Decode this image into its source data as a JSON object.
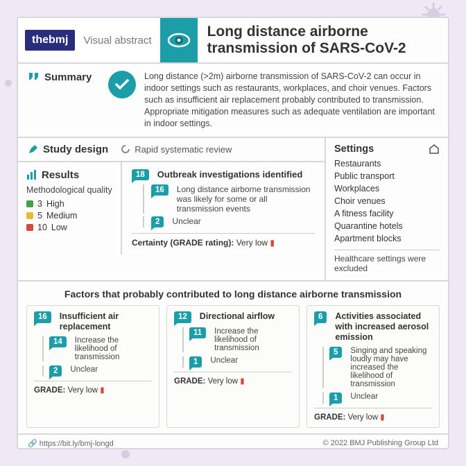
{
  "colors": {
    "accent": "#1c9ea8",
    "navy": "#2a2d7c",
    "border": "#d8d8d8",
    "bg_outer": "#f0e8f5",
    "high": "#3da24a",
    "medium": "#e8b83a",
    "low": "#d24a3a"
  },
  "header": {
    "logo_text": "thebmj",
    "visual_abstract": "Visual abstract",
    "title": "Long distance airborne transmission of SARS-CoV-2"
  },
  "summary": {
    "label": "Summary",
    "text": "Long distance (>2m) airborne transmission of SARS-CoV-2 can occur in indoor settings such as restaurants, workplaces, and choir venues. Factors such as insufficient air replacement probably contributed to transmission. Appropriate mitigation measures such as adequate ventilation are important in indoor settings."
  },
  "study_design": {
    "label": "Study design",
    "type": "Rapid systematic review"
  },
  "results": {
    "label": "Results",
    "quality_title": "Methodological quality",
    "quality": [
      {
        "n": "3",
        "label": "High"
      },
      {
        "n": "5",
        "label": "Medium"
      },
      {
        "n": "10",
        "label": "Low"
      }
    ],
    "quality_colors": [
      "#3da24a",
      "#e8b83a",
      "#d24a3a"
    ],
    "outbreak": {
      "total": "18",
      "title": "Outbreak investigations identified",
      "likely_n": "16",
      "likely_text": "Long distance airborne transmission was likely for some or all transmission events",
      "unclear_n": "2",
      "unclear_text": "Unclear",
      "certainty_label": "Certainty (GRADE rating):",
      "certainty_value": "Very low"
    }
  },
  "settings": {
    "label": "Settings",
    "items": [
      "Restaurants",
      "Public transport",
      "Workplaces",
      "Choir venues",
      "A fitness facility",
      "Quarantine hotels",
      "Apartment blocks"
    ],
    "note": "Healthcare settings were excluded"
  },
  "factors": {
    "title": "Factors that probably contributed to long distance airborne transmission",
    "cards": [
      {
        "n": "16",
        "head": "Insufficient air replacement",
        "sub_n": "14",
        "sub_text": "Increase the likelihood of transmission",
        "unc_n": "2",
        "unc_text": "Unclear",
        "grade_label": "GRADE:",
        "grade_value": "Very low"
      },
      {
        "n": "12",
        "head": "Directional airflow",
        "sub_n": "11",
        "sub_text": "Increase the likelihood of transmission",
        "unc_n": "1",
        "unc_text": "Unclear",
        "grade_label": "GRADE:",
        "grade_value": "Very low"
      },
      {
        "n": "6",
        "head": "Activities associated with increased aerosol emission",
        "sub_n": "5",
        "sub_text": "Singing and speaking loudly may have increased the likelihood of transmission",
        "unc_n": "1",
        "unc_text": "Unclear",
        "grade_label": "GRADE:",
        "grade_value": "Very low"
      }
    ]
  },
  "footer": {
    "url": "https://bit.ly/bmj-longd",
    "copyright": "© 2022 BMJ Publishing Group Ltd"
  }
}
